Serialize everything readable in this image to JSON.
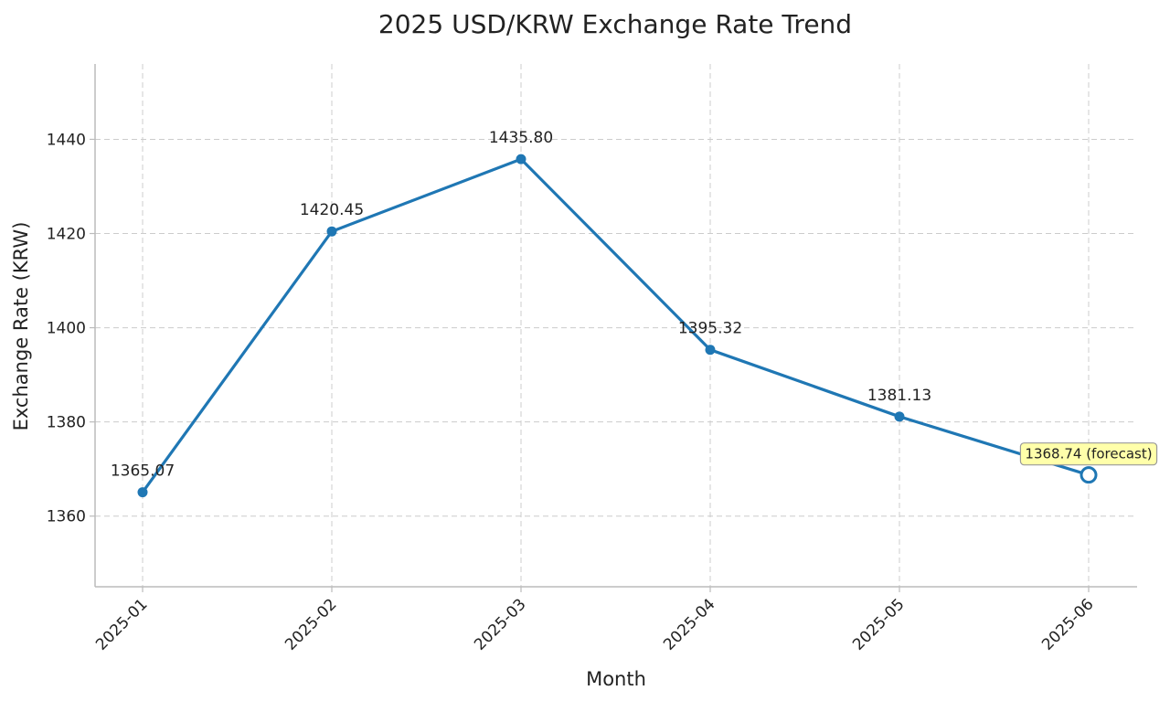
{
  "chart_data": {
    "type": "line",
    "title": "2025 USD/KRW Exchange Rate Trend",
    "xlabel": "Month",
    "ylabel": "Exchange Rate (KRW)",
    "categories": [
      "2025-01",
      "2025-02",
      "2025-03",
      "2025-04",
      "2025-05",
      "2025-06"
    ],
    "series": [
      {
        "values": [
          1365.07,
          1420.45,
          1435.8,
          1395.32,
          1381.13,
          1368.74
        ],
        "color": "#1f77b4"
      }
    ],
    "point_labels": [
      "1365.07",
      "1420.45",
      "1435.80",
      "1395.32",
      "1381.13",
      "1368.74 (forecast)"
    ],
    "forecast_index": 5,
    "forecast_label_bg": "#ffffaa",
    "forecast_label_border": "#999999",
    "ylim": [
      1345,
      1456
    ],
    "yticks": [
      1360,
      1380,
      1400,
      1420,
      1440
    ],
    "grid": true
  }
}
